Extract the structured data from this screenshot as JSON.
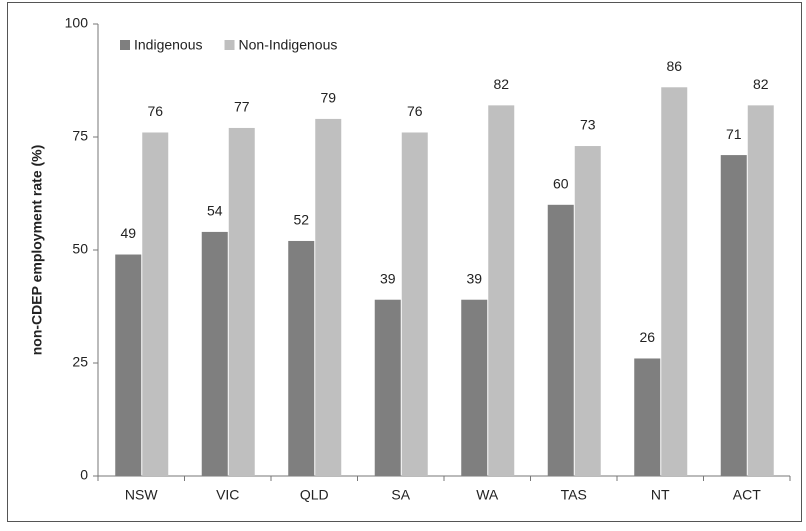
{
  "chart_data": {
    "type": "bar",
    "y_label": "non-CDEP employment rate (%)",
    "categories": [
      "NSW",
      "VIC",
      "QLD",
      "SA",
      "WA",
      "TAS",
      "NT",
      "ACT"
    ],
    "series": [
      {
        "name": "Indigenous",
        "color": "#7f7f7f",
        "values": [
          49,
          54,
          52,
          39,
          39,
          60,
          26,
          71
        ]
      },
      {
        "name": "Non-Indigenous",
        "color": "#bfbfbf",
        "values": [
          76,
          77,
          79,
          76,
          82,
          73,
          86,
          82
        ]
      }
    ],
    "ylim": [
      0,
      100
    ],
    "yticks": [
      0,
      25,
      50,
      75,
      100
    ],
    "grid": false,
    "legend": "top-left"
  }
}
